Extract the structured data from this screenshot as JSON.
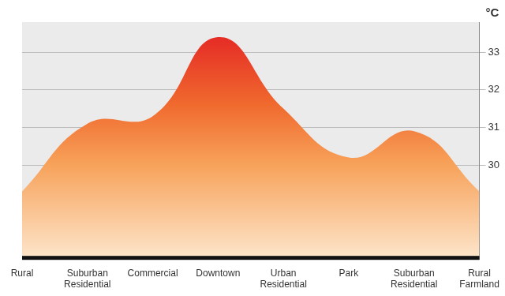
{
  "chart_data": {
    "type": "line",
    "categories": [
      "Rural",
      "Suburban Residential",
      "Commercial",
      "Downtown",
      "Urban Residential",
      "Park",
      "Suburban Residential",
      "Rural Farmland"
    ],
    "values": [
      29.3,
      31.1,
      31.3,
      33.4,
      31.5,
      30.2,
      30.9,
      29.3
    ],
    "color": "#e31e24",
    "y_label": "°C",
    "ylim": [
      27.5,
      33.8
    ],
    "yticks": [
      30,
      31,
      32,
      33
    ],
    "grid": true
  }
}
